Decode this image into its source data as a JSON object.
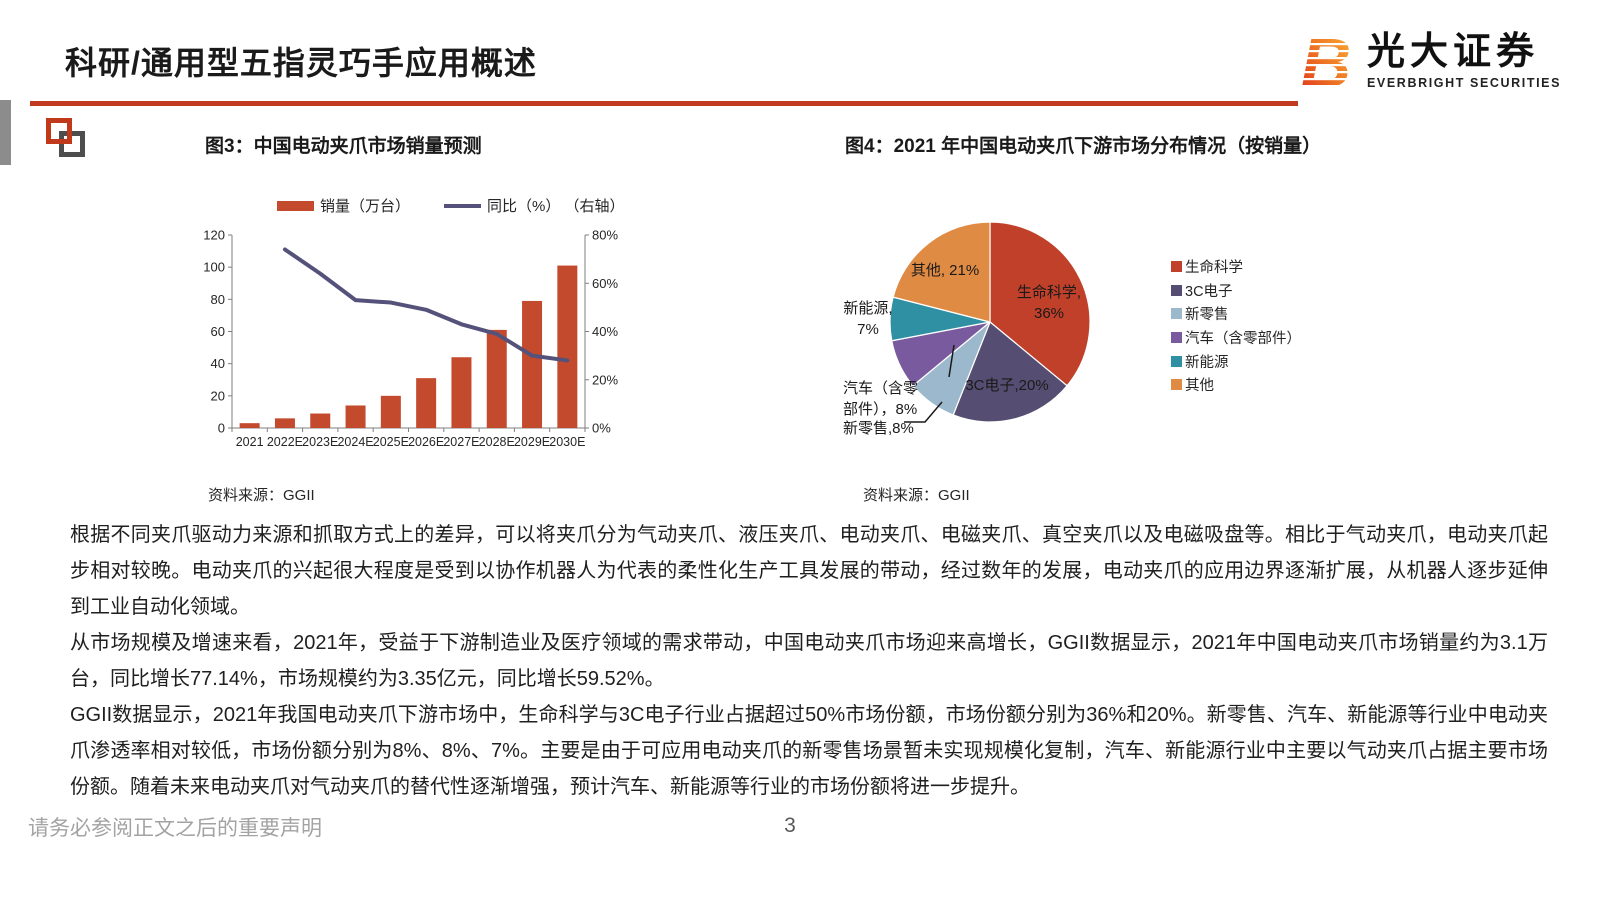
{
  "slide": {
    "title": "科研/通用型五指灵巧手应用概述",
    "brand": {
      "mark": "B",
      "name_cn": "光大证券",
      "name_en": "EVERBRIGHT SECURITIES"
    },
    "footer": {
      "disclaimer": "请务必参阅正文之后的重要声明",
      "page_number": "3"
    },
    "colors": {
      "accent_red": "#C23B20",
      "edge_gray": "#8C8C8C"
    }
  },
  "figure3": {
    "caption": "图3：中国电动夹爪市场销量预测",
    "source": "资料来源：GGII"
  },
  "figure4": {
    "caption": "图4：2021 年中国电动夹爪下游市场分布情况（按销量）",
    "source": "资料来源：GGII"
  },
  "chart_data": [
    {
      "type": "bar",
      "title": "中国电动夹爪市场销量预测",
      "categories": [
        "2021",
        "2022E",
        "2023E",
        "2024E",
        "2025E",
        "2026E",
        "2027E",
        "2028E",
        "2029E",
        "2030E"
      ],
      "series": [
        {
          "name": "销量（万台）",
          "type": "bar",
          "axis": "left",
          "color": "#C44A2E",
          "values": [
            3,
            6,
            9,
            14,
            20,
            31,
            44,
            61,
            79,
            101
          ]
        },
        {
          "name": "同比（%） （右轴）",
          "type": "line",
          "axis": "right",
          "color": "#54527B",
          "values": [
            null,
            74,
            64,
            53,
            52,
            49,
            43,
            39,
            30,
            28
          ]
        }
      ],
      "left_axis": {
        "min": 0,
        "max": 120,
        "step": 20,
        "ticks": [
          "0",
          "20",
          "40",
          "60",
          "80",
          "100",
          "120"
        ]
      },
      "right_axis": {
        "min": 0,
        "max": 80,
        "step": 20,
        "ticks": [
          "0%",
          "20%",
          "40%",
          "60%",
          "80%"
        ]
      },
      "grid": false,
      "legend_position": "top"
    },
    {
      "type": "pie",
      "title": "2021 年中国电动夹爪下游市场分布情况（按销量）",
      "start_angle_deg": 0,
      "direction": "clockwise",
      "legend_position": "right",
      "slices": [
        {
          "label": "生命科学",
          "value": 36,
          "color": "#C0402A",
          "display_lines": [
            "生命科学,",
            "36%"
          ]
        },
        {
          "label": "3C电子",
          "value": 20,
          "color": "#564E72",
          "display_lines": [
            "3C电子,20%"
          ]
        },
        {
          "label": "新零售",
          "value": 8,
          "color": "#9CB8CD",
          "display_lines": [
            "新零售,8%"
          ]
        },
        {
          "label": "汽车（含零部件）",
          "value": 8,
          "color": "#7A5A9E",
          "display_lines": [
            "汽车（含零",
            "部件），8%"
          ]
        },
        {
          "label": "新能源",
          "value": 7,
          "color": "#2F8FA3",
          "display_lines": [
            "新能源,",
            "7%"
          ]
        },
        {
          "label": "其他",
          "value": 21,
          "color": "#E08B44",
          "display_lines": [
            "其他, 21%"
          ]
        }
      ]
    }
  ],
  "body_paragraphs": [
    "根据不同夹爪驱动力来源和抓取方式上的差异，可以将夹爪分为气动夹爪、液压夹爪、电动夹爪、电磁夹爪、真空夹爪以及电磁吸盘等。相比于气动夹爪，电动夹爪起步相对较晚。电动夹爪的兴起很大程度是受到以协作机器人为代表的柔性化生产工具发展的带动，经过数年的发展，电动夹爪的应用边界逐渐扩展，从机器人逐步延伸到工业自动化领域。",
    "从市场规模及增速来看，2021年，受益于下游制造业及医疗领域的需求带动，中国电动夹爪市场迎来高增长，GGII数据显示，2021年中国电动夹爪市场销量约为3.1万台，同比增长77.14%，市场规模约为3.35亿元，同比增长59.52%。",
    "GGII数据显示，2021年我国电动夹爪下游市场中，生命科学与3C电子行业占据超过50%市场份额，市场份额分别为36%和20%。新零售、汽车、新能源等行业中电动夹爪渗透率相对较低，市场份额分别为8%、8%、7%。主要是由于可应用电动夹爪的新零售场景暂未实现规模化复制，汽车、新能源行业中主要以气动夹爪占据主要市场份额。随着未来电动夹爪对气动夹爪的替代性逐渐增强，预计汽车、新能源等行业的市场份额将进一步提升。"
  ]
}
